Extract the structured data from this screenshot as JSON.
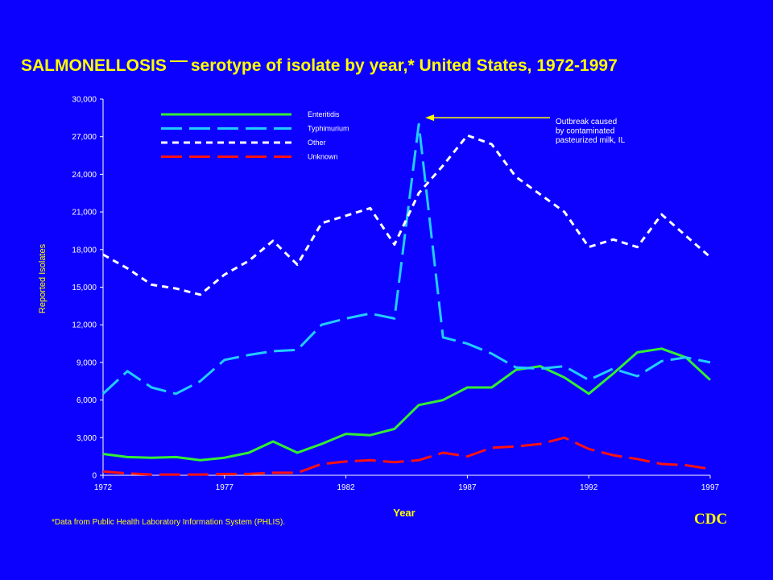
{
  "chart_data": {
    "type": "line",
    "title_main": "SALMONELLOSIS",
    "title_rest": "serotype of isolate by year,* United States, 1972-1997",
    "xlabel": "Year",
    "ylabel": "Reported Isolates",
    "xlim": [
      1972,
      1997
    ],
    "ylim": [
      0,
      30000
    ],
    "x_ticks": [
      "1972",
      "1977",
      "1982",
      "1987",
      "1992",
      "1997"
    ],
    "y_ticks": [
      "0",
      "3,000",
      "6,000",
      "9,000",
      "12,000",
      "15,000",
      "18,000",
      "21,000",
      "24,000",
      "27,000",
      "30,000"
    ],
    "grid": false,
    "legend_position": "top-left",
    "x": [
      1972,
      1973,
      1974,
      1975,
      1976,
      1977,
      1978,
      1979,
      1980,
      1981,
      1982,
      1983,
      1984,
      1985,
      1986,
      1987,
      1988,
      1989,
      1990,
      1991,
      1992,
      1993,
      1994,
      1995,
      1996,
      1997
    ],
    "series": [
      {
        "name": "Enteritidis",
        "color": "#33ee33",
        "dash": "solid",
        "values": [
          1700,
          1450,
          1400,
          1450,
          1200,
          1400,
          1800,
          2700,
          1800,
          2500,
          3300,
          3200,
          3700,
          5600,
          6000,
          7000,
          7000,
          8400,
          8700,
          7800,
          6500,
          8100,
          9800,
          10100,
          9400,
          7600
        ]
      },
      {
        "name": "Typhimurium",
        "color": "#22ccff",
        "dash": "long",
        "values": [
          6500,
          8300,
          7000,
          6500,
          7500,
          9200,
          9600,
          9900,
          10000,
          12000,
          12500,
          12900,
          12500,
          28000,
          11000,
          10500,
          9700,
          8600,
          8500,
          8700,
          7600,
          8500,
          7900,
          9100,
          9400,
          9000
        ]
      },
      {
        "name": "Other",
        "color": "#ffffff",
        "dash": "short",
        "values": [
          17600,
          16500,
          15200,
          14900,
          14400,
          16000,
          17100,
          18700,
          16800,
          20100,
          20700,
          21300,
          18400,
          22500,
          24700,
          27100,
          26400,
          23800,
          22400,
          21000,
          18200,
          18800,
          18200,
          20800,
          19100,
          17400
        ]
      },
      {
        "name": "Unknown",
        "color": "#ff1111",
        "dash": "long",
        "values": [
          300,
          150,
          60,
          60,
          60,
          100,
          100,
          200,
          200,
          900,
          1100,
          1200,
          1050,
          1200,
          1800,
          1500,
          2200,
          2300,
          2500,
          3000,
          2100,
          1600,
          1300,
          900,
          800,
          500
        ]
      }
    ],
    "annotation": {
      "lines": [
        "Outbreak caused",
        "by contaminated",
        "pasteurized milk, IL"
      ],
      "x": 1985,
      "y": 28000
    }
  },
  "footnote": "*Data from Public Health Laboratory Information System (PHLIS).",
  "logo": "CDC"
}
